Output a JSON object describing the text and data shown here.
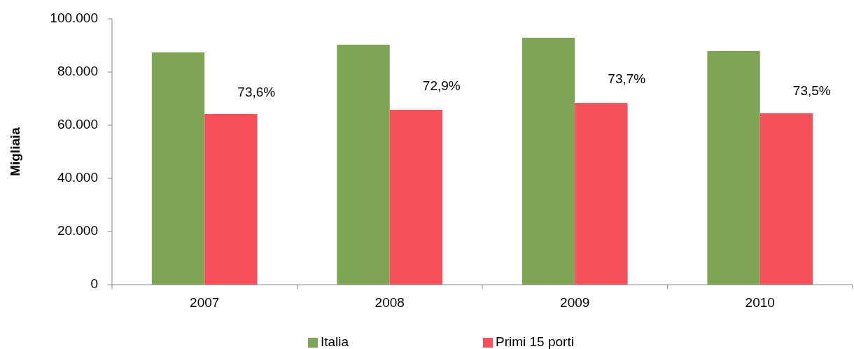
{
  "chart_data": {
    "type": "bar",
    "ylabel": "Migliaia",
    "categories": [
      "2007",
      "2008",
      "2009",
      "2010"
    ],
    "series": [
      {
        "name": "Italia",
        "color": "#7ea553",
        "values": [
          87400,
          90300,
          92900,
          87900
        ]
      },
      {
        "name": "Primi 15 porti",
        "color": "#f6515b",
        "values": [
          64200,
          65800,
          68400,
          64500
        ]
      }
    ],
    "annotations": [
      {
        "text": "73,6%",
        "x": "2007",
        "y": 72100
      },
      {
        "text": "72,9%",
        "x": "2008",
        "y": 74500
      },
      {
        "text": "73,7%",
        "x": "2009",
        "y": 77100
      },
      {
        "text": "73,5%",
        "x": "2010",
        "y": 72600
      }
    ],
    "ylim": [
      0,
      100000
    ],
    "yticks": [
      {
        "value": 0,
        "label": "0"
      },
      {
        "value": 20000,
        "label": "20.000"
      },
      {
        "value": 40000,
        "label": "40.000"
      },
      {
        "value": 60000,
        "label": "60.000"
      },
      {
        "value": 80000,
        "label": "80.000"
      },
      {
        "value": 100000,
        "label": "100.000"
      }
    ],
    "grid": false,
    "legend": "bottom"
  }
}
